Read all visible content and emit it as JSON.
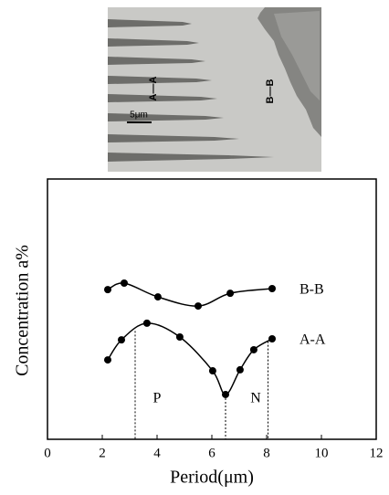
{
  "micrograph": {
    "labels": [
      "A—A",
      "B—B",
      "5μm"
    ]
  },
  "chart_data": {
    "type": "line",
    "ylabel": "Concentration a%",
    "xlabel": "Period(μm)",
    "xlim": [
      0,
      12
    ],
    "xticks": [
      0,
      2,
      4,
      6,
      8,
      10,
      12
    ],
    "ylim": [
      0,
      10
    ],
    "series": [
      {
        "name": "B-B",
        "color": "#000000",
        "x": [
          2.2,
          2.8,
          4.03,
          5.5,
          6.67,
          8.2
        ],
        "values": [
          5.75,
          6.0,
          5.47,
          5.12,
          5.61,
          5.79
        ]
      },
      {
        "name": "A-A",
        "color": "#000000",
        "x": [
          2.2,
          2.7,
          3.63,
          4.83,
          6.03,
          6.5,
          7.03,
          7.53,
          8.2
        ],
        "values": [
          3.05,
          3.82,
          4.46,
          3.93,
          2.63,
          1.72,
          2.67,
          3.44,
          3.86
        ]
      }
    ],
    "dividers": [
      3.2,
      6.5,
      8.05
    ],
    "annotations": [
      {
        "text": "P",
        "x": 4.0
      },
      {
        "text": "N",
        "x": 7.6
      }
    ]
  }
}
